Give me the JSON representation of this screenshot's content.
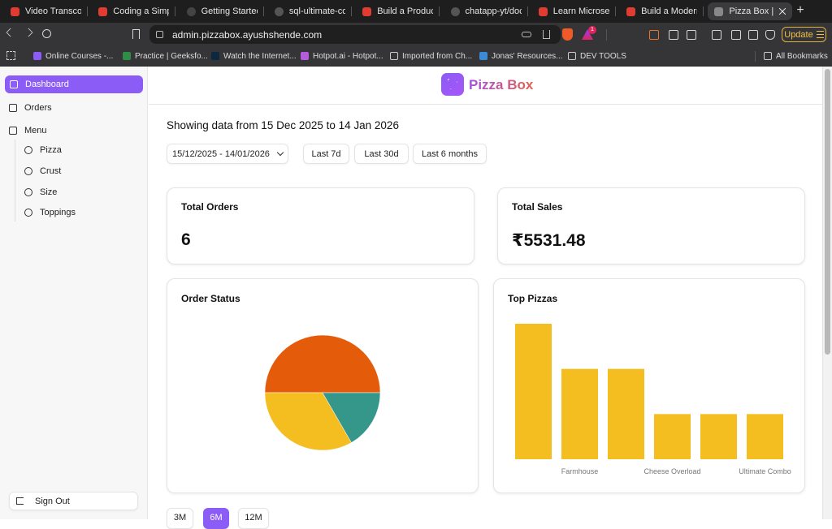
{
  "browser": {
    "tabs": [
      "Video Transcoding",
      "Coding a Simple V",
      "Getting Started w",
      "sql-ultimate-cour",
      "Build a Production",
      "chatapp-yt/docke",
      "Learn Microservic",
      "Build a Modern Fu",
      "Pizza Box | Ad"
    ],
    "url": "admin.pizzabox.ayushshende.com",
    "shield_badge": "1",
    "update_button": "Update",
    "bookmarks": [
      "Online Courses -...",
      "Practice | Geeksfo...",
      "Watch the Internet...",
      "Hotpot.ai - Hotpot...",
      "Imported from Ch...",
      "Jonas' Resources...",
      "DEV TOOLS"
    ],
    "all_bookmarks": "All Bookmarks"
  },
  "sidebar": {
    "items": [
      "Dashboard",
      "Orders",
      "Menu"
    ],
    "submenu": [
      "Pizza",
      "Crust",
      "Size",
      "Toppings"
    ],
    "sign_out": "Sign Out"
  },
  "header": {
    "brand": "Pizza Box"
  },
  "filter": {
    "summary": "Showing data from 15 Dec 2025 to 14 Jan 2026",
    "date_range": "15/12/2025 - 14/01/2026",
    "presets": [
      "Last 7d",
      "Last 30d",
      "Last 6 months"
    ]
  },
  "stats": [
    {
      "title": "Total Orders",
      "value": 6
    },
    {
      "title": "Total Sales",
      "value": "₹5531.48"
    }
  ],
  "chart_data": [
    {
      "type": "pie",
      "title": "Order Status",
      "values": [
        3,
        2,
        1
      ],
      "colors": [
        "#e45c0a",
        "#f4bd20",
        "#35978a"
      ]
    },
    {
      "type": "bar",
      "title": "Top Pizzas",
      "categories": [
        null,
        "Farmhouse",
        null,
        "Cheese Overload",
        null,
        "Ultimate Combo"
      ],
      "values": [
        3,
        2,
        2,
        1,
        1,
        1
      ],
      "color": "#f4bd20"
    }
  ],
  "period_buttons": [
    "3M",
    "6M",
    "12M"
  ]
}
